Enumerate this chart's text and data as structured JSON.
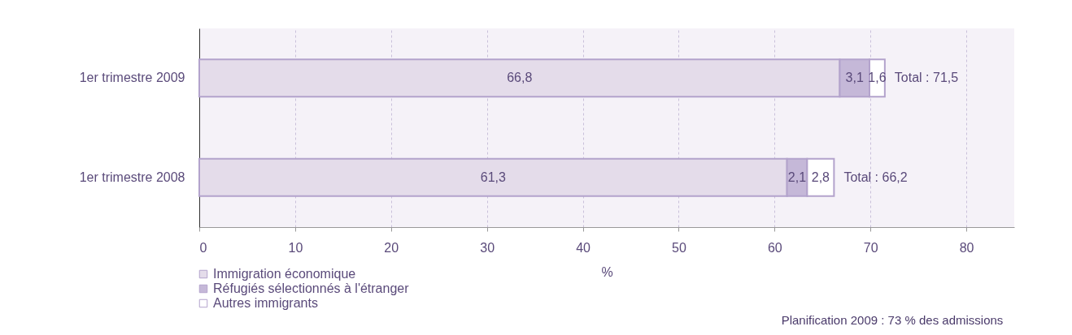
{
  "chart_data": {
    "type": "bar",
    "orientation": "horizontal",
    "stacked": true,
    "categories": [
      "1er trimestre 2009",
      "1er trimestre 2008"
    ],
    "series": [
      {
        "name": "Immigration économique",
        "color": "#e4dcea",
        "values": [
          66.8,
          61.3
        ],
        "value_labels": [
          "66,8",
          "61,3"
        ]
      },
      {
        "name": "Réfugiés sélectionnés à l'étranger",
        "color": "#c5b8d8",
        "values": [
          3.1,
          2.1
        ],
        "value_labels": [
          "3,1",
          "2,1"
        ]
      },
      {
        "name": "Autres immigrants",
        "color": "#ffffff",
        "values": [
          1.6,
          2.8
        ],
        "value_labels": [
          "1,6",
          "2,8"
        ]
      }
    ],
    "totals": [
      "Total : 71,5",
      "Total : 66,2"
    ],
    "xlabel": "%",
    "xlim": [
      0,
      85
    ],
    "xticks": [
      0,
      10,
      20,
      30,
      40,
      50,
      60,
      70,
      80
    ],
    "grid": "x",
    "legend": "bottom left",
    "annotations": [
      "Planification 2009 : 73 % des admissions"
    ]
  }
}
